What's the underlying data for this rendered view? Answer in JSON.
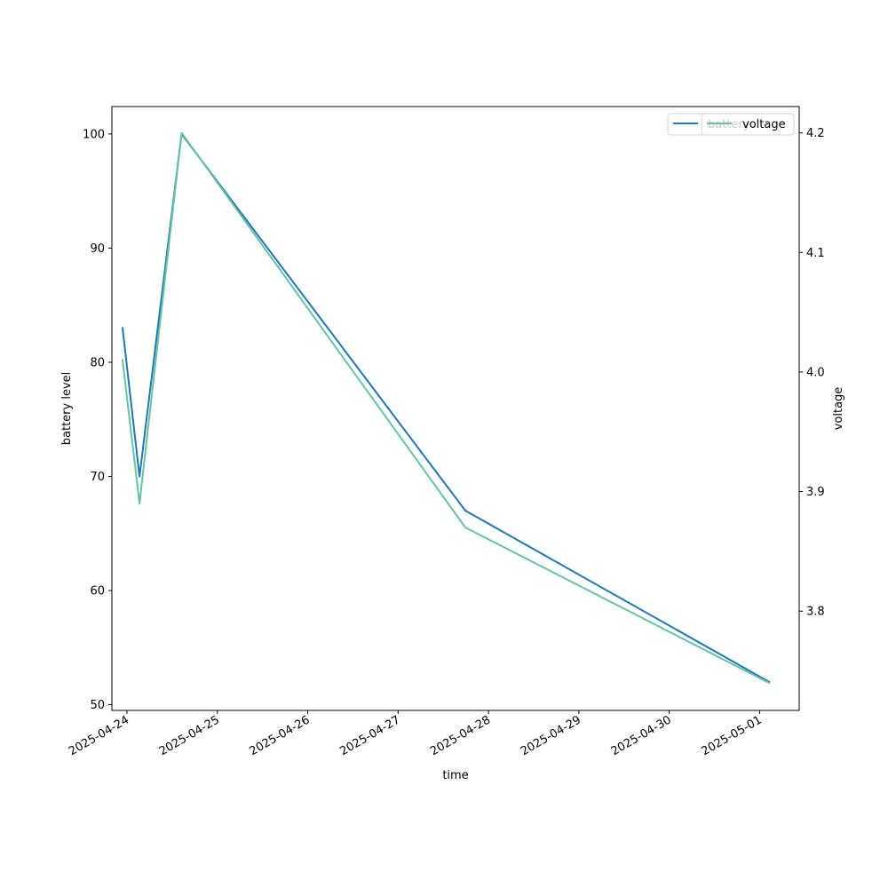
{
  "chart_data": {
    "type": "line",
    "xlabel": "time",
    "ylabel_left": "battery level",
    "ylabel_right": "voltage",
    "x_tick_labels": [
      "2025-04-24",
      "2025-04-25",
      "2025-04-26",
      "2025-04-27",
      "2025-04-28",
      "2025-04-29",
      "2025-04-30",
      "2025-05-01"
    ],
    "xlim": [
      "2025-04-23 20:00",
      "2025-05-01 10:30"
    ],
    "ylim_left": [
      49.5,
      102.4
    ],
    "yticks_left": [
      50,
      60,
      70,
      80,
      90,
      100
    ],
    "ylim_right": [
      3.717,
      4.222
    ],
    "yticks_right": [
      3.8,
      3.9,
      4.0,
      4.1,
      4.2
    ],
    "yticks_right_labels": [
      "3.8",
      "3.9",
      "4.0",
      "4.1",
      "4.2"
    ],
    "grid": false,
    "legend_placement": "top-right",
    "series": [
      {
        "name": "battery",
        "axis": "left",
        "color": "#1f77b4",
        "points": [
          {
            "x": "2025-04-23 22:50",
            "y": 83
          },
          {
            "x": "2025-04-24 03:20",
            "y": 70
          },
          {
            "x": "2025-04-24 14:30",
            "y": 100
          },
          {
            "x": "2025-04-27 17:50",
            "y": 67
          },
          {
            "x": "2025-05-01 02:30",
            "y": 52
          }
        ]
      },
      {
        "name": "voltage",
        "axis": "right",
        "color": "#66c2a5",
        "points": [
          {
            "x": "2025-04-23 22:50",
            "y": 4.01
          },
          {
            "x": "2025-04-24 03:20",
            "y": 3.89
          },
          {
            "x": "2025-04-24 14:30",
            "y": 4.2
          },
          {
            "x": "2025-04-27 17:50",
            "y": 3.87
          },
          {
            "x": "2025-05-01 02:30",
            "y": 3.74
          }
        ]
      }
    ]
  }
}
